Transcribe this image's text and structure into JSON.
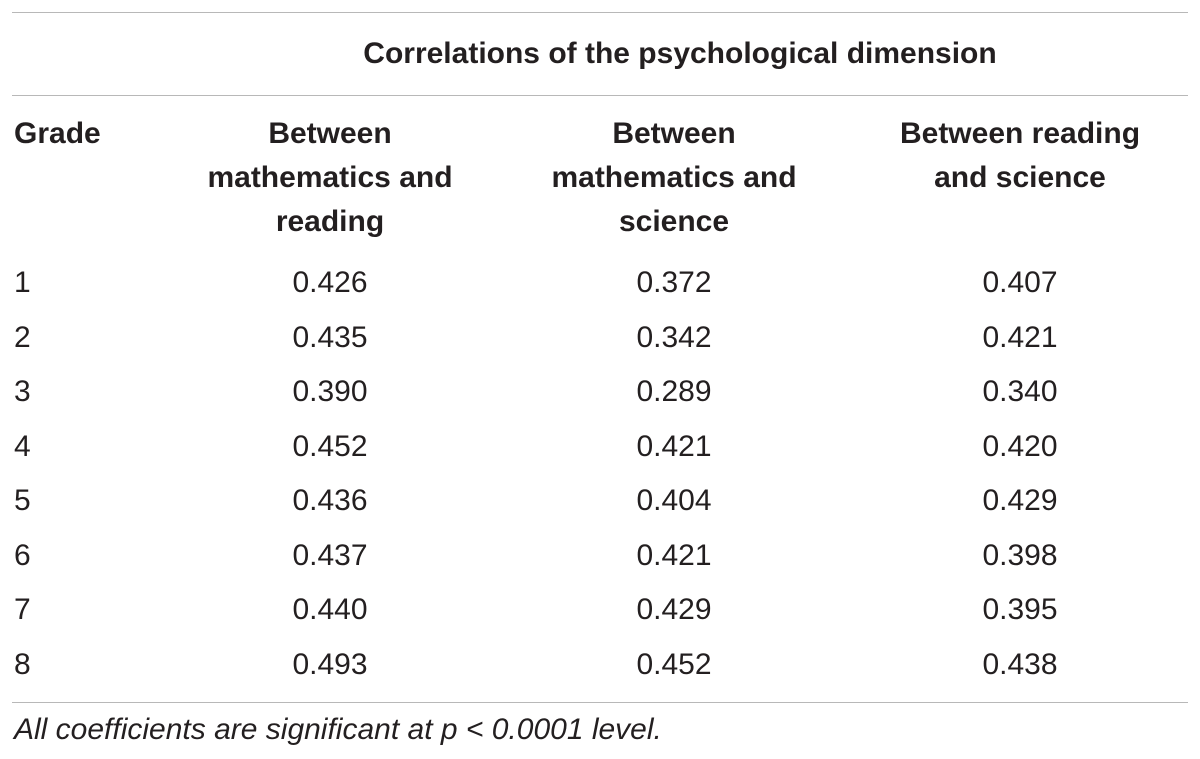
{
  "table": {
    "caption": "Correlations of the psychological dimension",
    "headers": {
      "grade": "Grade",
      "col1": [
        "Between",
        "mathematics and",
        "reading"
      ],
      "col2": [
        "Between",
        "mathematics and",
        "science"
      ],
      "col3": [
        "Between reading",
        "and science"
      ]
    },
    "rows": [
      {
        "grade": "1",
        "math_reading": "0.426",
        "math_science": "0.372",
        "reading_science": "0.407"
      },
      {
        "grade": "2",
        "math_reading": "0.435",
        "math_science": "0.342",
        "reading_science": "0.421"
      },
      {
        "grade": "3",
        "math_reading": "0.390",
        "math_science": "0.289",
        "reading_science": "0.340"
      },
      {
        "grade": "4",
        "math_reading": "0.452",
        "math_science": "0.421",
        "reading_science": "0.420"
      },
      {
        "grade": "5",
        "math_reading": "0.436",
        "math_science": "0.404",
        "reading_science": "0.429"
      },
      {
        "grade": "6",
        "math_reading": "0.437",
        "math_science": "0.421",
        "reading_science": "0.398"
      },
      {
        "grade": "7",
        "math_reading": "0.440",
        "math_science": "0.429",
        "reading_science": "0.395"
      },
      {
        "grade": "8",
        "math_reading": "0.493",
        "math_science": "0.452",
        "reading_science": "0.438"
      }
    ],
    "footnote": "All coefficients are significant at p < 0.0001 level."
  }
}
